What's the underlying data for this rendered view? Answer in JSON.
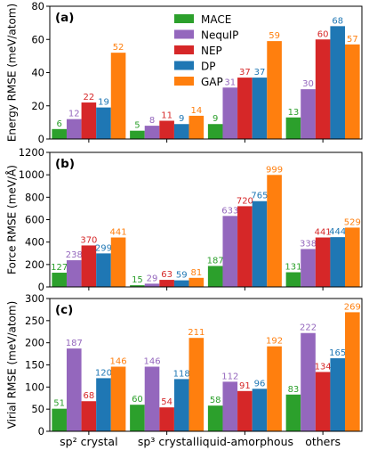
{
  "chart_data": {
    "type": "bar",
    "categories": [
      "sp² crystal",
      "sp³ crystal",
      "liquid-amorphous",
      "others"
    ],
    "legend": {
      "placement": "top-center",
      "entries": [
        "MACE",
        "NequIP",
        "NEP",
        "DP",
        "GAP"
      ]
    },
    "colors": {
      "MACE": "#2ca02c",
      "NequIP": "#9467bd",
      "NEP": "#d62728",
      "DP": "#1f77b4",
      "GAP": "#ff7f0e"
    },
    "panels": [
      {
        "tag": "(a)",
        "ylabel": "Energy RMSE (meV/atom)",
        "ylim": [
          0,
          80
        ],
        "yticks": [
          "0",
          "20",
          "40",
          "60",
          "80"
        ],
        "series": [
          {
            "name": "MACE",
            "values": [
              6,
              5,
              9,
              13
            ]
          },
          {
            "name": "NequIP",
            "values": [
              12,
              8,
              31,
              30
            ]
          },
          {
            "name": "NEP",
            "values": [
              22,
              11,
              37,
              60
            ]
          },
          {
            "name": "DP",
            "values": [
              19,
              9,
              37,
              68
            ]
          },
          {
            "name": "GAP",
            "values": [
              52,
              14,
              59,
              57
            ]
          }
        ]
      },
      {
        "tag": "(b)",
        "ylabel": "Force RMSE (meV/Å)",
        "ylim": [
          0,
          1200
        ],
        "yticks": [
          "0",
          "200",
          "400",
          "600",
          "800",
          "1000",
          "1200"
        ],
        "series": [
          {
            "name": "MACE",
            "values": [
              127,
              15,
              187,
              131
            ]
          },
          {
            "name": "NequIP",
            "values": [
              238,
              29,
              633,
              338
            ]
          },
          {
            "name": "NEP",
            "values": [
              370,
              63,
              720,
              441
            ]
          },
          {
            "name": "DP",
            "values": [
              299,
              59,
              765,
              444
            ]
          },
          {
            "name": "GAP",
            "values": [
              441,
              81,
              999,
              529
            ]
          }
        ]
      },
      {
        "tag": "(c)",
        "ylabel": "Virial RMSE (meV/atom)",
        "ylim": [
          0,
          300
        ],
        "yticks": [
          "0",
          "50",
          "100",
          "150",
          "200",
          "250",
          "300"
        ],
        "series": [
          {
            "name": "MACE",
            "values": [
              51,
              60,
              58,
              83
            ]
          },
          {
            "name": "NequIP",
            "values": [
              187,
              146,
              112,
              222
            ]
          },
          {
            "name": "NEP",
            "values": [
              68,
              54,
              91,
              134
            ]
          },
          {
            "name": "DP",
            "values": [
              120,
              118,
              96,
              165
            ]
          },
          {
            "name": "GAP",
            "values": [
              146,
              211,
              192,
              269
            ]
          }
        ]
      }
    ]
  }
}
